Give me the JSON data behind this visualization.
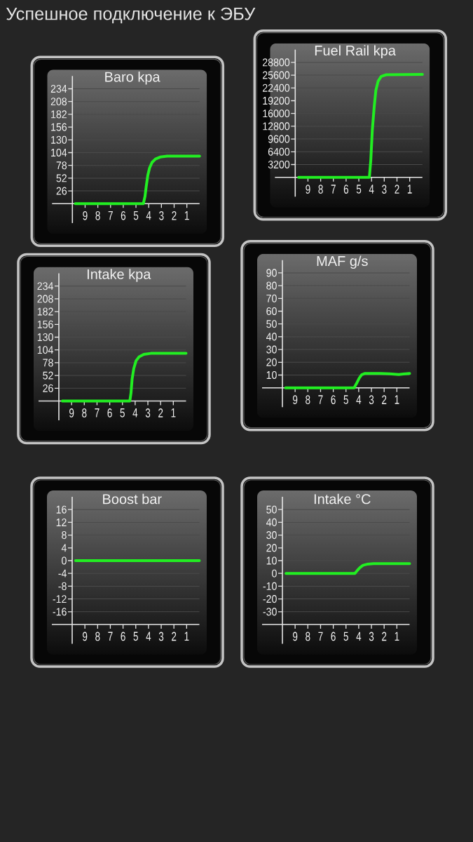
{
  "chart_data": [
    {
      "type": "other",
      "title": "Успешное подключение к ЭБУ"
    },
    {
      "type": "line",
      "title": "Baro kpa",
      "x": [
        9.77,
        4.42,
        4.29,
        4.2,
        4.07,
        3.93,
        3.74,
        3.47,
        3.1,
        2.55,
        0
      ],
      "values": [
        0,
        0,
        15,
        34,
        58,
        73,
        84,
        91,
        95,
        97,
        97
      ],
      "color": "#22ee22",
      "xlim": [
        10,
        0
      ],
      "ylim": [
        0,
        260
      ],
      "xticks": [
        9,
        8,
        7,
        6,
        5,
        4,
        3,
        2,
        1
      ],
      "yticks": [
        26,
        52,
        78,
        104,
        130,
        156,
        182,
        208,
        234
      ],
      "grid": "y"
    },
    {
      "type": "line",
      "title": "Fuel Rail kpa",
      "x": [
        9.73,
        4.17,
        4.06,
        3.94,
        3.79,
        3.66,
        3.48,
        3.24,
        2.84,
        0
      ],
      "values": [
        0,
        0,
        4200,
        11800,
        17700,
        21800,
        24100,
        25300,
        25700,
        25800
      ],
      "color": "#22ee22",
      "xlim": [
        10,
        0
      ],
      "ylim": [
        0,
        32000
      ],
      "xticks": [
        9,
        8,
        7,
        6,
        5,
        4,
        3,
        2,
        1
      ],
      "yticks": [
        3200,
        6400,
        9600,
        12800,
        16000,
        19200,
        22400,
        25600,
        28800
      ],
      "grid": "y"
    },
    {
      "type": "line",
      "title": "Intake kpa",
      "x": [
        9.73,
        4.42,
        4.33,
        4.24,
        4.11,
        3.93,
        3.69,
        3.32,
        2.77,
        0
      ],
      "values": [
        0,
        0,
        16,
        45,
        66,
        82,
        90,
        95,
        97,
        97
      ],
      "color": "#22ee22",
      "xlim": [
        10,
        0
      ],
      "ylim": [
        0,
        260
      ],
      "xticks": [
        9,
        8,
        7,
        6,
        5,
        4,
        3,
        2,
        1
      ],
      "yticks": [
        26,
        52,
        78,
        104,
        130,
        156,
        182,
        208,
        234
      ],
      "grid": "y"
    },
    {
      "type": "line",
      "title": "MAF g/s",
      "x": [
        9.75,
        4.36,
        4.14,
        3.95,
        3.77,
        3.5,
        3.04,
        2.31,
        1.58,
        0.85,
        0.48,
        0
      ],
      "values": [
        0,
        0,
        4,
        7.7,
        10.2,
        11.3,
        11.3,
        11.3,
        11,
        10.4,
        10.8,
        11.2
      ],
      "color": "#22ee22",
      "xlim": [
        10,
        0
      ],
      "ylim": [
        0,
        100
      ],
      "xticks": [
        9,
        8,
        7,
        6,
        5,
        4,
        3,
        2,
        1
      ],
      "yticks": [
        10,
        20,
        30,
        40,
        50,
        60,
        70,
        80,
        90
      ],
      "grid": "y"
    },
    {
      "type": "line",
      "title": "Boost bar",
      "x": [
        9.73,
        0
      ],
      "values": [
        0,
        0
      ],
      "color": "#22ee22",
      "xlim": [
        10,
        0
      ],
      "ylim": [
        -20,
        20
      ],
      "xticks": [
        9,
        8,
        7,
        6,
        5,
        4,
        3,
        2,
        1
      ],
      "yticks": [
        -16,
        -12,
        -8,
        -4,
        0,
        4,
        8,
        12,
        16
      ],
      "grid": "y"
    },
    {
      "type": "line",
      "title": "Intake °C",
      "x": [
        9.72,
        4.3,
        4.12,
        3.9,
        3.66,
        3.29,
        2.83,
        0
      ],
      "values": [
        0,
        0,
        2.2,
        4.6,
        6.4,
        7.3,
        7.7,
        7.7
      ],
      "color": "#22ee22",
      "xlim": [
        10,
        0
      ],
      "ylim": [
        -40,
        60
      ],
      "xticks": [
        9,
        8,
        7,
        6,
        5,
        4,
        3,
        2,
        1
      ],
      "yticks": [
        -30,
        -20,
        -10,
        0,
        10,
        20,
        30,
        40,
        50
      ],
      "grid": "y"
    }
  ]
}
